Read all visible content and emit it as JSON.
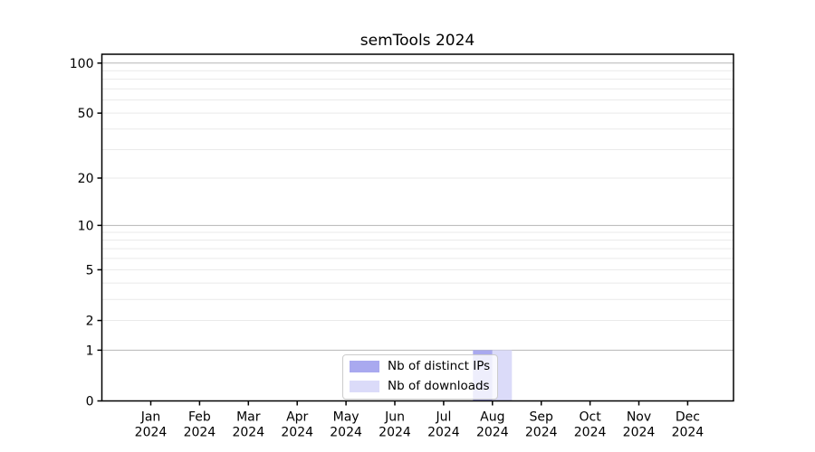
{
  "figure": {
    "title": "semTools 2024"
  },
  "chart_data": {
    "type": "bar",
    "title": "semTools 2024",
    "x_categories": [
      "Jan",
      "Feb",
      "Mar",
      "Apr",
      "May",
      "Jun",
      "Jul",
      "Aug",
      "Sep",
      "Oct",
      "Nov",
      "Dec"
    ],
    "x_year": "2024",
    "series": [
      {
        "name": "Nb of distinct IPs",
        "color": "#a9a9ef",
        "values": [
          0,
          0,
          0,
          0,
          0,
          0,
          0,
          1,
          0,
          0,
          0,
          0
        ]
      },
      {
        "name": "Nb of downloads",
        "color": "#dbdbf9",
        "values": [
          0,
          0,
          0,
          0,
          0,
          0,
          0,
          1,
          0,
          0,
          0,
          0
        ]
      }
    ],
    "yscale": "log1p",
    "ylim": [
      0,
      113
    ],
    "y_axis": {
      "labeled_ticks": [
        0,
        1,
        2,
        5,
        10,
        20,
        50,
        100
      ],
      "major_gridlines": [
        1,
        10,
        100
      ],
      "minor_gridlines": [
        2,
        3,
        4,
        5,
        6,
        7,
        8,
        9,
        20,
        30,
        40,
        50,
        60,
        70,
        80,
        90
      ]
    },
    "grid": "horizontal major+minor",
    "legend_position": "lower center",
    "colors": {
      "major_grid": "#b6b6b6",
      "minor_grid": "#eaeaea",
      "axis": "#000000",
      "background": "#ffffff",
      "text": "#000000"
    }
  }
}
